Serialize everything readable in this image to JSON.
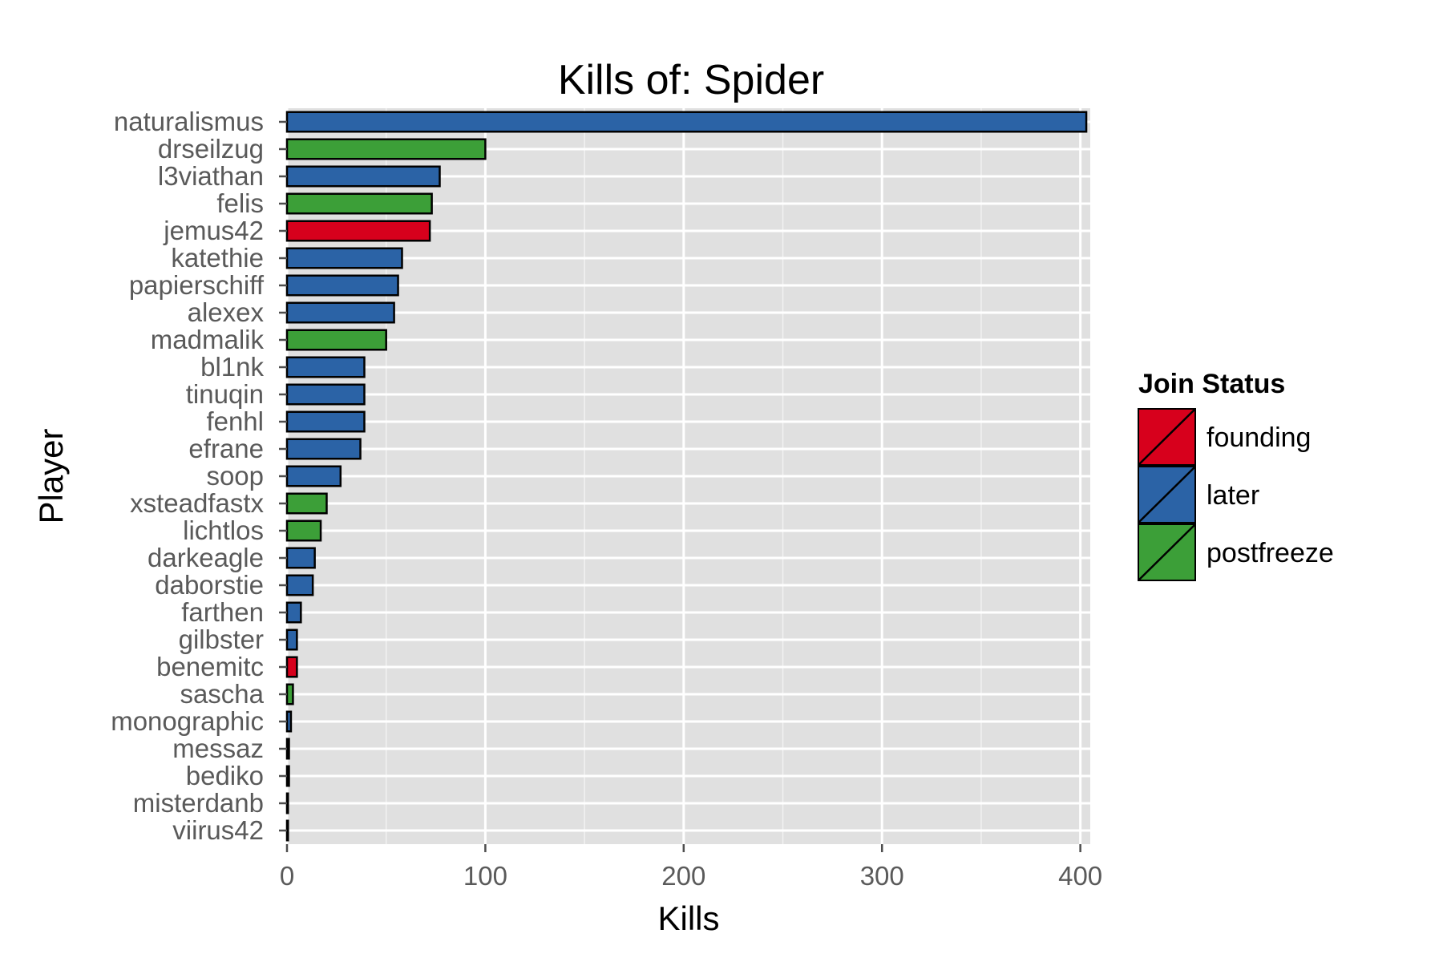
{
  "chart_data": {
    "type": "bar",
    "orientation": "horizontal",
    "title": "Kills of: Spider",
    "xlabel": "Kills",
    "ylabel": "Player",
    "xlim": [
      0,
      405
    ],
    "xticks": [
      0,
      100,
      200,
      300,
      400
    ],
    "grid": true,
    "legend": {
      "title": "Join Status",
      "placement": "right",
      "entries": [
        {
          "label": "founding",
          "color": "#d7001c"
        },
        {
          "label": "later",
          "color": "#2b63a6"
        },
        {
          "label": "postfreeze",
          "color": "#3c9f38"
        }
      ]
    },
    "categories": [
      "naturalismus",
      "drseilzug",
      "l3viathan",
      "felis",
      "jemus42",
      "katethie",
      "papierschiff",
      "alexex",
      "madmalik",
      "bl1nk",
      "tinuqin",
      "fenhl",
      "efrane",
      "soop",
      "xsteadfastx",
      "lichtlos",
      "darkeagle",
      "daborstie",
      "farthen",
      "gilbster",
      "benemitc",
      "sascha",
      "monographic",
      "messaz",
      "bediko",
      "misterdanb",
      "viirus42"
    ],
    "values": [
      403,
      100,
      77,
      73,
      72,
      58,
      56,
      54,
      50,
      39,
      39,
      39,
      37,
      27,
      20,
      17,
      14,
      13,
      7,
      5,
      5,
      3,
      2,
      1,
      1,
      0.5,
      0.5
    ],
    "groups": [
      "later",
      "postfreeze",
      "later",
      "postfreeze",
      "founding",
      "later",
      "later",
      "later",
      "postfreeze",
      "later",
      "later",
      "later",
      "later",
      "later",
      "postfreeze",
      "postfreeze",
      "later",
      "later",
      "later",
      "later",
      "founding",
      "postfreeze",
      "later",
      "later",
      "later",
      "later",
      "later"
    ]
  }
}
